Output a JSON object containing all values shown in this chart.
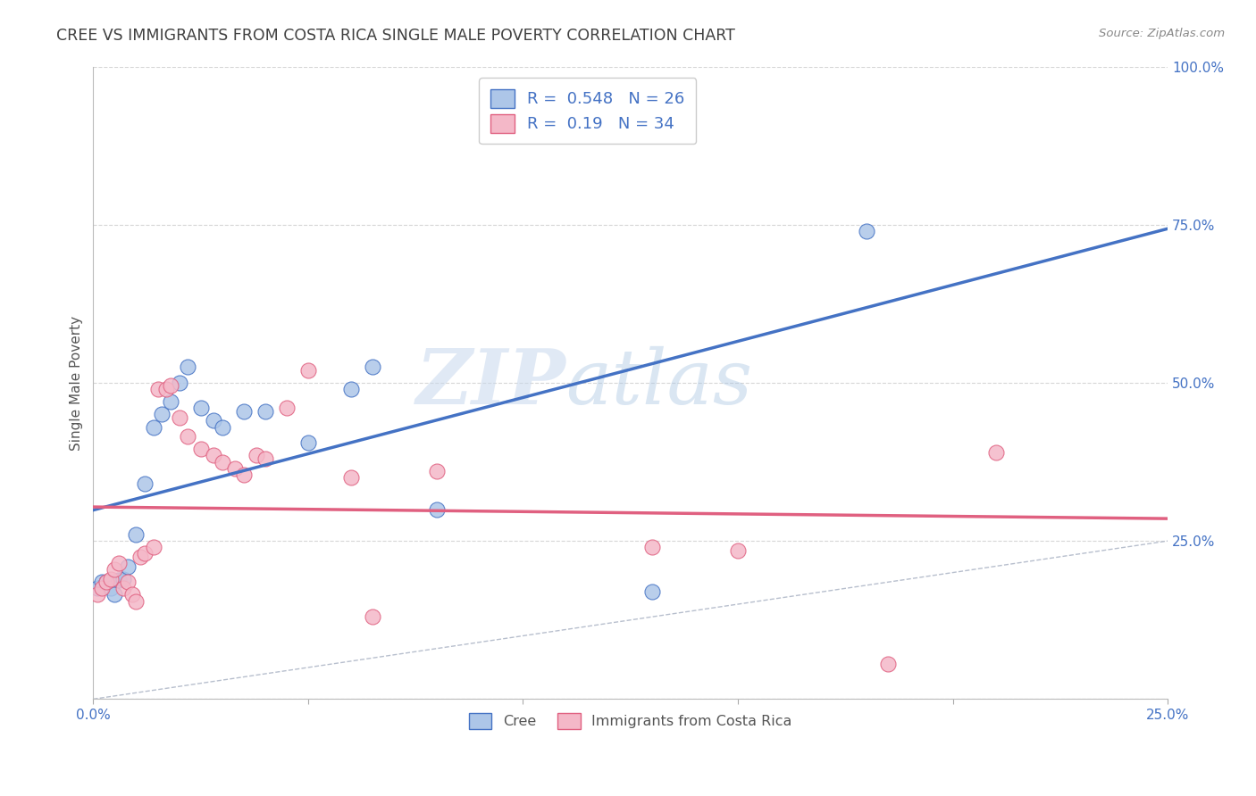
{
  "title": "CREE VS IMMIGRANTS FROM COSTA RICA SINGLE MALE POVERTY CORRELATION CHART",
  "source": "Source: ZipAtlas.com",
  "ylabel": "Single Male Poverty",
  "cree_R": 0.548,
  "cree_N": 26,
  "cr_R": 0.19,
  "cr_N": 34,
  "cree_color": "#adc6e8",
  "cree_line_color": "#4472c4",
  "cr_color": "#f4b8c8",
  "cr_line_color": "#e06080",
  "bg_color": "#ffffff",
  "grid_color": "#cccccc",
  "title_color": "#404040",
  "axis_label_color": "#4472c4",
  "watermark_zip": "ZIP",
  "watermark_atlas": "atlas",
  "xlim": [
    0,
    0.25
  ],
  "ylim": [
    0,
    1.0
  ],
  "diag_line_color": "#b0b8c8",
  "legend_box_color": "#ffffff",
  "legend_border_color": "#cccccc",
  "cree_x": [
    0.001,
    0.002,
    0.003,
    0.004,
    0.005,
    0.006,
    0.007,
    0.008,
    0.01,
    0.012,
    0.014,
    0.016,
    0.018,
    0.02,
    0.022,
    0.025,
    0.028,
    0.03,
    0.035,
    0.04,
    0.05,
    0.06,
    0.065,
    0.08,
    0.13,
    0.18
  ],
  "cree_y": [
    0.175,
    0.185,
    0.185,
    0.175,
    0.165,
    0.188,
    0.19,
    0.21,
    0.26,
    0.34,
    0.43,
    0.45,
    0.47,
    0.5,
    0.525,
    0.46,
    0.44,
    0.43,
    0.455,
    0.455,
    0.405,
    0.49,
    0.525,
    0.3,
    0.17,
    0.74
  ],
  "cr_x": [
    0.001,
    0.002,
    0.003,
    0.004,
    0.005,
    0.006,
    0.007,
    0.008,
    0.009,
    0.01,
    0.011,
    0.012,
    0.014,
    0.015,
    0.017,
    0.018,
    0.02,
    0.022,
    0.025,
    0.028,
    0.03,
    0.033,
    0.035,
    0.038,
    0.04,
    0.045,
    0.05,
    0.06,
    0.065,
    0.08,
    0.13,
    0.15,
    0.185,
    0.21
  ],
  "cr_y": [
    0.165,
    0.175,
    0.185,
    0.19,
    0.205,
    0.215,
    0.175,
    0.185,
    0.165,
    0.155,
    0.225,
    0.23,
    0.24,
    0.49,
    0.49,
    0.495,
    0.445,
    0.415,
    0.395,
    0.385,
    0.375,
    0.365,
    0.355,
    0.385,
    0.38,
    0.46,
    0.52,
    0.35,
    0.13,
    0.36,
    0.24,
    0.235,
    0.055,
    0.39
  ]
}
